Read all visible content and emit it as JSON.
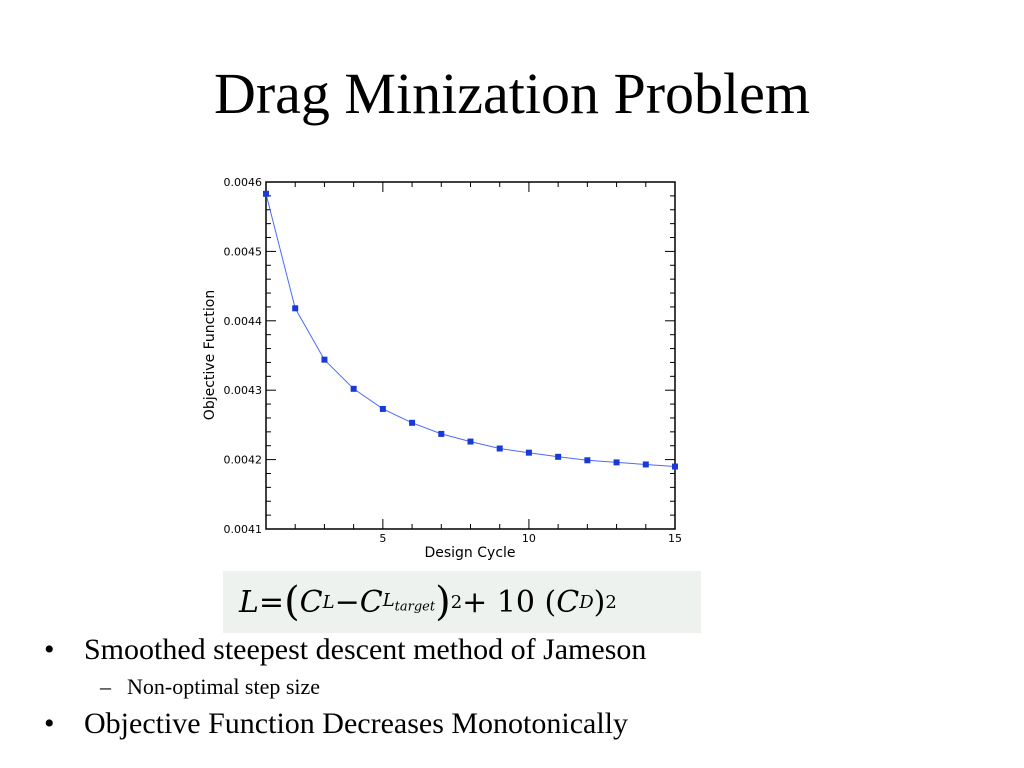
{
  "slide": {
    "title": "Drag Minization Problem"
  },
  "chart_data": {
    "type": "line",
    "xlabel": "Design Cycle",
    "ylabel": "Objective Function",
    "xlim": [
      1,
      15
    ],
    "ylim": [
      0.0041,
      0.0046
    ],
    "x_ticks": [
      5,
      10,
      15
    ],
    "x_tick_labels": [
      "5",
      "10",
      "15"
    ],
    "y_ticks": [
      0.0041,
      0.0042,
      0.0043,
      0.0044,
      0.0045,
      0.0046
    ],
    "y_tick_labels": [
      "0.0041",
      "0.0042",
      "0.0043",
      "0.0044",
      "0.0045",
      "0.0046"
    ],
    "grid": false,
    "line_color": "#4d6bff",
    "marker_color": "#1a3ad6",
    "series": [
      {
        "x": [
          1,
          2,
          3,
          4,
          5,
          6,
          7,
          8,
          9,
          10,
          11,
          12,
          13,
          14,
          15
        ],
        "values": [
          0.004583,
          0.004418,
          0.004344,
          0.004302,
          0.004273,
          0.004253,
          0.004237,
          0.004226,
          0.004216,
          0.00421,
          0.004204,
          0.004199,
          0.004196,
          0.004193,
          0.00419
        ]
      }
    ]
  },
  "formula": {
    "L": "L",
    "eq": " = ",
    "C": "C",
    "L_sub": "L",
    "minus": " − ",
    "target_sub": "target",
    "pow2": "2",
    "plus": " + 10",
    "D_sub": "D"
  },
  "bullets": [
    {
      "marker": "•",
      "text": "Smoothed steepest descent method of Jameson"
    },
    {
      "marker": "–",
      "text": "Non-optimal step size"
    },
    {
      "marker": "•",
      "text": "Objective Function Decreases Monotonically"
    }
  ]
}
